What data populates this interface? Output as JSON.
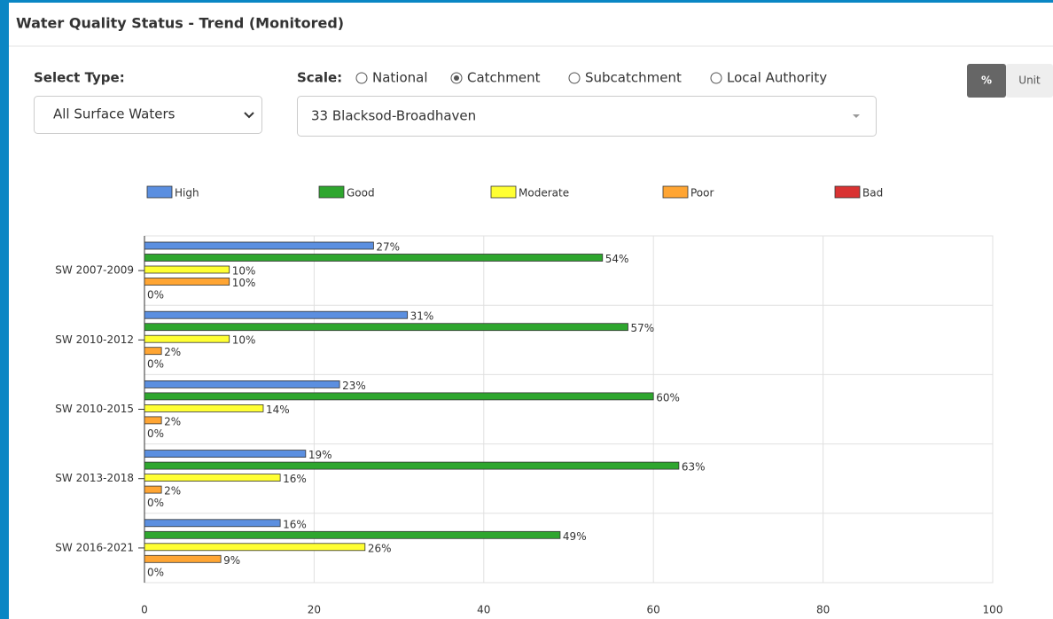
{
  "header": {
    "title": "Water Quality Status - Trend (Monitored)"
  },
  "controls": {
    "select_type": {
      "label": "Select Type:",
      "value": "All Surface Waters"
    },
    "scale": {
      "label": "Scale:",
      "options": [
        "National",
        "Catchment",
        "Subcatchment",
        "Local Authority"
      ],
      "selected_index": 1
    },
    "area": {
      "value": "33 Blacksod-Broadhaven"
    },
    "unit_toggle": {
      "options": [
        "%",
        "Unit"
      ],
      "active_index": 0
    }
  },
  "chart_data": {
    "type": "hbar",
    "categories": [
      "SW 2007-2009",
      "SW 2010-2012",
      "SW 2010-2015",
      "SW 2013-2018",
      "SW 2016-2021"
    ],
    "series": [
      {
        "name": "High",
        "color": "#5b8fe0",
        "values": [
          27,
          31,
          23,
          19,
          16
        ],
        "value_labels": [
          "27%",
          "31%",
          "23%",
          "19%",
          "16%"
        ]
      },
      {
        "name": "Good",
        "color": "#2ea62e",
        "values": [
          54,
          57,
          60,
          63,
          49
        ],
        "value_labels": [
          "54%",
          "57%",
          "60%",
          "63%",
          "49%"
        ]
      },
      {
        "name": "Moderate",
        "color": "#ffff33",
        "values": [
          10,
          10,
          14,
          16,
          26
        ],
        "value_labels": [
          "10%",
          "10%",
          "14%",
          "16%",
          "26%"
        ]
      },
      {
        "name": "Poor",
        "color": "#ffa533",
        "values": [
          10,
          2,
          2,
          2,
          9
        ],
        "value_labels": [
          "10%",
          "2%",
          "2%",
          "2%",
          "9%"
        ]
      },
      {
        "name": "Bad",
        "color": "#d93333",
        "values": [
          0,
          0,
          0,
          0,
          0
        ],
        "value_labels": [
          "0%",
          "0%",
          "0%",
          "0%",
          "0%"
        ]
      }
    ],
    "xlim": [
      0,
      100
    ],
    "xticks": [
      0,
      20,
      40,
      60,
      80,
      100
    ],
    "grid": true
  }
}
